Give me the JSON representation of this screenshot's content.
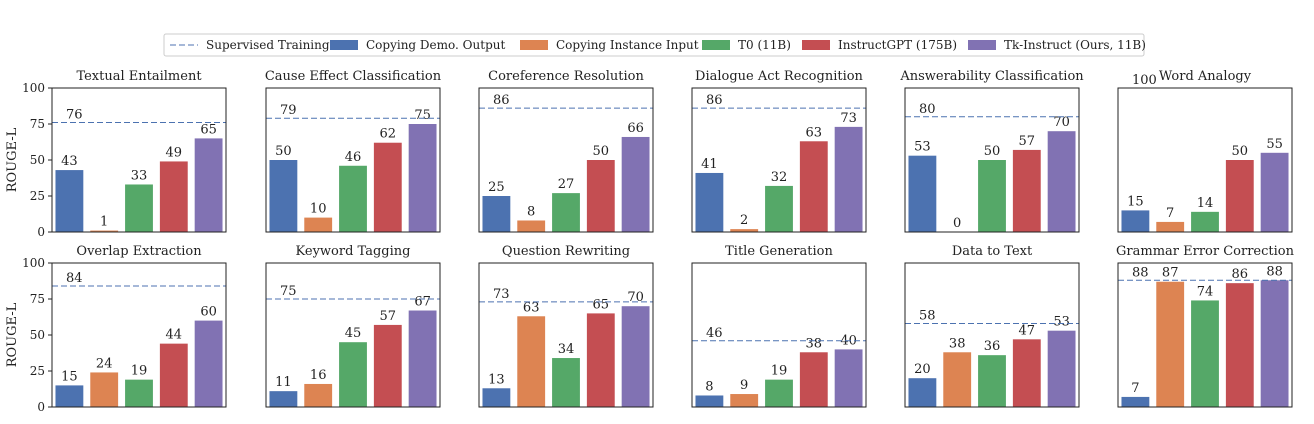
{
  "chart_data": {
    "type": "bar",
    "ylabel": "ROUGE-L",
    "ylim": [
      0,
      100
    ],
    "yticks": [
      0,
      25,
      50,
      75,
      100
    ],
    "legend": {
      "placement": "top-center",
      "entries": [
        {
          "name": "Supervised Training",
          "kind": "line",
          "color": "#4c72b0"
        },
        {
          "name": "Copying Demo. Output",
          "kind": "bar",
          "color": "#4c72b0"
        },
        {
          "name": "Copying Instance Input",
          "kind": "bar",
          "color": "#dd8452"
        },
        {
          "name": "T0 (11B)",
          "kind": "bar",
          "color": "#55a868"
        },
        {
          "name": "InstructGPT (175B)",
          "kind": "bar",
          "color": "#c44e52"
        },
        {
          "name": "Tk-Instruct (Ours, 11B)",
          "kind": "bar",
          "color": "#8172b3"
        }
      ]
    },
    "series": [
      "Copying Demo. Output",
      "Copying Instance Input",
      "T0 (11B)",
      "InstructGPT (175B)",
      "Tk-Instruct (Ours, 11B)"
    ],
    "colors": [
      "#4c72b0",
      "#dd8452",
      "#55a868",
      "#c44e52",
      "#8172b3"
    ],
    "panels": [
      {
        "title": "Textual Entailment",
        "supervised": 76,
        "values": [
          43,
          1,
          33,
          49,
          65
        ]
      },
      {
        "title": "Cause Effect Classification",
        "supervised": 79,
        "values": [
          50,
          10,
          46,
          62,
          75
        ]
      },
      {
        "title": "Coreference Resolution",
        "supervised": 86,
        "values": [
          25,
          8,
          27,
          50,
          66
        ]
      },
      {
        "title": "Dialogue Act Recognition",
        "supervised": 86,
        "values": [
          41,
          2,
          32,
          63,
          73
        ]
      },
      {
        "title": "Answerability Classification",
        "supervised": 80,
        "values": [
          53,
          0,
          50,
          57,
          70
        ]
      },
      {
        "title": "Word Analogy",
        "supervised": 100,
        "values": [
          15,
          7,
          14,
          50,
          55
        ]
      },
      {
        "title": "Overlap Extraction",
        "supervised": 84,
        "values": [
          15,
          24,
          19,
          44,
          60
        ]
      },
      {
        "title": "Keyword Tagging",
        "supervised": 75,
        "values": [
          11,
          16,
          45,
          57,
          67
        ]
      },
      {
        "title": "Question Rewriting",
        "supervised": 73,
        "values": [
          13,
          63,
          34,
          65,
          70
        ]
      },
      {
        "title": "Title Generation",
        "supervised": 46,
        "values": [
          8,
          9,
          19,
          38,
          40
        ]
      },
      {
        "title": "Data to Text",
        "supervised": 58,
        "values": [
          20,
          38,
          36,
          47,
          53
        ]
      },
      {
        "title": "Grammar Error Correction",
        "supervised": 88,
        "values": [
          7,
          87,
          74,
          86,
          88
        ]
      }
    ]
  }
}
